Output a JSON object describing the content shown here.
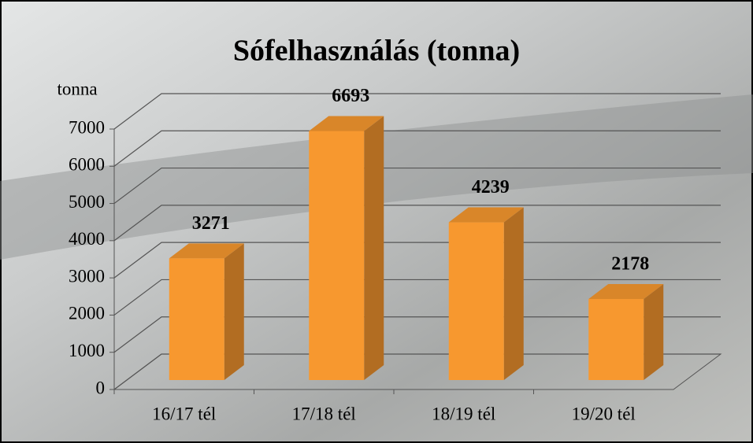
{
  "chart_data": {
    "type": "bar3d",
    "title": "Sófelhasználás (tonna)",
    "y_label": "tonna",
    "categories": [
      "16/17 tél",
      "17/18 tél",
      "18/19 tél",
      "19/20 tél"
    ],
    "values": [
      3271,
      6693,
      4239,
      2178
    ],
    "color": "#f7982f",
    "ylim": [
      0,
      7000
    ],
    "yticks": [
      0,
      1000,
      2000,
      3000,
      4000,
      5000,
      6000,
      7000
    ],
    "grid": true
  }
}
